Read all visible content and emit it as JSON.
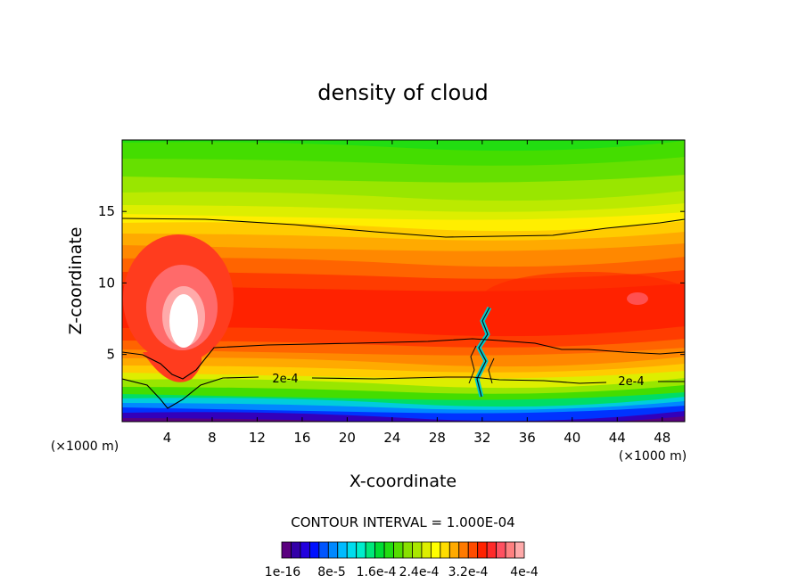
{
  "chart_data": {
    "type": "heatmap",
    "title": "density of cloud",
    "xlabel": "X-coordinate",
    "ylabel": "Z-coordinate",
    "x_unit": "(×1000 m)",
    "z_unit": "(×1000 m)",
    "xlim": [
      0,
      50
    ],
    "ylim": [
      0.3,
      20
    ],
    "x_ticks": [
      4,
      8,
      12,
      16,
      20,
      24,
      28,
      32,
      36,
      40,
      44,
      48
    ],
    "y_ticks": [
      5,
      10,
      15
    ],
    "contour_interval": "CONTOUR INTERVAL = 1.000E-04",
    "contour_labels": [
      "2e-4",
      "2e-4"
    ],
    "colorbar": {
      "labels": [
        "1e-16",
        "8e-5",
        "1.6e-4",
        "2.4e-4",
        "3.2e-4",
        "4e-4"
      ],
      "colors": [
        "#5a007f",
        "#3300a8",
        "#2200dd",
        "#0011ff",
        "#0055ff",
        "#0088ff",
        "#00bbff",
        "#00ddee",
        "#00eecc",
        "#00e87a",
        "#00dd33",
        "#22dd11",
        "#55dd00",
        "#88e000",
        "#aae800",
        "#ddee00",
        "#ffff00",
        "#ffdd00",
        "#ffaa00",
        "#ff7a00",
        "#ff4c00",
        "#ff2200",
        "#ff2a2a",
        "#ff5060",
        "#ff8080",
        "#ffaaaa"
      ]
    },
    "field_levels": {
      "core": "4e-4",
      "contours": [
        "1e-4",
        "2e-4",
        "3e-4"
      ]
    }
  }
}
